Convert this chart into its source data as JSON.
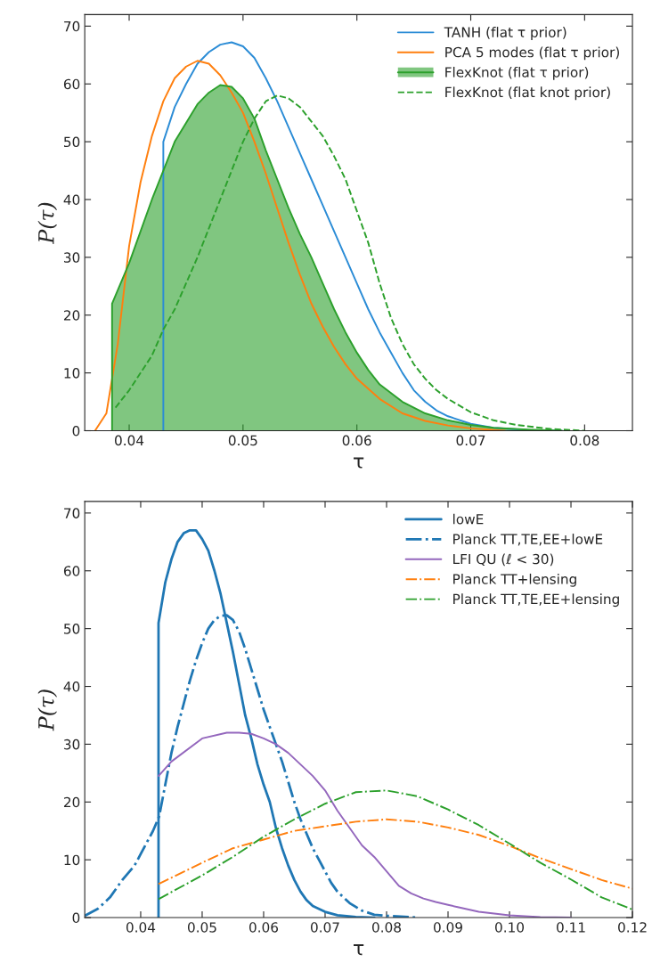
{
  "chart_data": [
    {
      "type": "line",
      "xlabel": "τ",
      "ylabel": "P(τ)",
      "xlim": [
        0.0361,
        0.0842
      ],
      "ylim": [
        0,
        72
      ],
      "xticks": [
        0.04,
        0.05,
        0.06,
        0.07,
        0.08
      ],
      "yticks": [
        0,
        10,
        20,
        30,
        40,
        50,
        60,
        70
      ],
      "grid": false,
      "legend": "top right",
      "series": [
        {
          "name": "TANH (flat τ prior)",
          "color": "#2b8cd6",
          "line_style": "solid",
          "x": [
            0.043,
            0.043,
            0.044,
            0.045,
            0.046,
            0.047,
            0.048,
            0.049,
            0.05,
            0.051,
            0.052,
            0.053,
            0.054,
            0.055,
            0.056,
            0.057,
            0.058,
            0.059,
            0.06,
            0.061,
            0.062,
            0.063,
            0.064,
            0.065,
            0.066,
            0.067,
            0.068,
            0.07,
            0.072,
            0.075,
            0.078
          ],
          "values": [
            0,
            50,
            56,
            60,
            63.5,
            65.5,
            66.8,
            67.2,
            66.5,
            64.5,
            61,
            57,
            52.5,
            48,
            43.5,
            39,
            34.5,
            30,
            25.5,
            21,
            17,
            13.5,
            10,
            7,
            5,
            3.5,
            2.5,
            1.2,
            0.5,
            0.1,
            0
          ]
        },
        {
          "name": "PCA 5 modes (flat τ prior)",
          "color": "#ff7f0e",
          "line_style": "solid",
          "x": [
            0.037,
            0.038,
            0.039,
            0.04,
            0.041,
            0.042,
            0.043,
            0.044,
            0.045,
            0.046,
            0.047,
            0.048,
            0.049,
            0.05,
            0.051,
            0.052,
            0.053,
            0.054,
            0.055,
            0.056,
            0.057,
            0.058,
            0.059,
            0.06,
            0.062,
            0.064,
            0.066,
            0.068,
            0.07,
            0.073
          ],
          "values": [
            0,
            3,
            15,
            32,
            43,
            51,
            57,
            61,
            63,
            64,
            63.5,
            61.5,
            58.5,
            55,
            50,
            44.5,
            38.5,
            32.5,
            27,
            22,
            18,
            14.5,
            11.5,
            9,
            5.5,
            3,
            1.7,
            0.9,
            0.4,
            0
          ]
        },
        {
          "name": "FlexKnot (flat τ prior)",
          "type": "area",
          "color": "#2ca02c",
          "line_style": "solid",
          "x": [
            0.0385,
            0.0385,
            0.04,
            0.042,
            0.043,
            0.044,
            0.046,
            0.047,
            0.048,
            0.049,
            0.05,
            0.051,
            0.052,
            0.053,
            0.054,
            0.055,
            0.056,
            0.057,
            0.058,
            0.059,
            0.06,
            0.061,
            0.062,
            0.064,
            0.066,
            0.068,
            0.07,
            0.072,
            0.075,
            0.078
          ],
          "values": [
            0,
            22,
            29,
            40,
            45,
            50,
            56.5,
            58.5,
            59.8,
            59.5,
            57.5,
            54,
            48.5,
            43.5,
            38.5,
            34,
            30,
            25.5,
            21,
            17,
            13.5,
            10.5,
            8,
            5,
            3,
            1.8,
            1,
            0.5,
            0.2,
            0
          ]
        },
        {
          "name": "FlexKnot (flat knot prior)",
          "color": "#2ca02c",
          "line_style": "dashed",
          "x": [
            0.0388,
            0.04,
            0.042,
            0.043,
            0.044,
            0.046,
            0.048,
            0.05,
            0.051,
            0.052,
            0.053,
            0.054,
            0.055,
            0.056,
            0.057,
            0.058,
            0.059,
            0.06,
            0.061,
            0.062,
            0.063,
            0.064,
            0.065,
            0.066,
            0.067,
            0.068,
            0.07,
            0.072,
            0.074,
            0.077,
            0.08
          ],
          "values": [
            4,
            7,
            13,
            17.5,
            21,
            30,
            40,
            50,
            54,
            57,
            58,
            57.5,
            56,
            53.5,
            51,
            47.5,
            43.5,
            38,
            32.5,
            25.5,
            19.5,
            15,
            11.5,
            9,
            7,
            5.5,
            3.2,
            1.8,
            1,
            0.3,
            0
          ]
        }
      ]
    },
    {
      "type": "line",
      "xlabel": "τ",
      "ylabel": "P(τ)",
      "xlim": [
        0.0309,
        0.12
      ],
      "ylim": [
        0,
        72
      ],
      "xticks": [
        0.04,
        0.05,
        0.06,
        0.07,
        0.08,
        0.09,
        {
          "value": 0.1,
          "label": "0.10"
        },
        0.11,
        {
          "value": 0.12,
          "label": "0.12"
        }
      ],
      "yticks": [
        0,
        10,
        20,
        30,
        40,
        50,
        60,
        70
      ],
      "grid": false,
      "legend": "top right",
      "series": [
        {
          "name": "lowE",
          "color": "#1f77b4",
          "line_style": "solid",
          "x": [
            0.0429,
            0.0429,
            0.044,
            0.045,
            0.046,
            0.047,
            0.048,
            0.049,
            0.05,
            0.051,
            0.052,
            0.053,
            0.054,
            0.055,
            0.056,
            0.057,
            0.058,
            0.059,
            0.06,
            0.061,
            0.062,
            0.063,
            0.064,
            0.065,
            0.066,
            0.067,
            0.068,
            0.07,
            0.072,
            0.075,
            0.078
          ],
          "values": [
            0,
            51,
            58,
            62,
            65,
            66.5,
            67,
            67,
            65.5,
            63.5,
            60,
            56,
            51,
            46,
            40.5,
            35,
            31,
            26.5,
            23,
            20,
            15.5,
            12,
            9,
            6.5,
            4.5,
            3,
            2,
            1,
            0.4,
            0.1,
            0
          ]
        },
        {
          "name": "Planck TT,TE,EE+lowE",
          "color": "#1f77b4",
          "line_style": "dashdot",
          "x": [
            0.0309,
            0.033,
            0.035,
            0.037,
            0.039,
            0.04,
            0.041,
            0.042,
            0.043,
            0.044,
            0.045,
            0.046,
            0.047,
            0.048,
            0.049,
            0.05,
            0.051,
            0.052,
            0.053,
            0.054,
            0.055,
            0.056,
            0.057,
            0.058,
            0.059,
            0.06,
            0.061,
            0.062,
            0.063,
            0.064,
            0.065,
            0.066,
            0.067,
            0.068,
            0.069,
            0.07,
            0.071,
            0.072,
            0.074,
            0.076,
            0.078,
            0.08,
            0.085
          ],
          "values": [
            0.3,
            1.5,
            3.5,
            6.5,
            9,
            11,
            13,
            15,
            17.5,
            23,
            28.5,
            33,
            37,
            41,
            44.5,
            47.5,
            50,
            51.5,
            52.2,
            52.3,
            51.5,
            49.5,
            46.5,
            43,
            39.5,
            36,
            33,
            30,
            27,
            23.5,
            20,
            17,
            14.5,
            12,
            10,
            8,
            6,
            4.5,
            2.5,
            1.2,
            0.5,
            0.3,
            0
          ]
        },
        {
          "name": "LFI QU (ℓ < 30)",
          "color": "#9467bd",
          "line_style": "solid",
          "x": [
            0.0429,
            0.045,
            0.05,
            0.054,
            0.056,
            0.058,
            0.06,
            0.062,
            0.064,
            0.066,
            0.068,
            0.07,
            0.072,
            0.074,
            0.076,
            0.078,
            0.08,
            0.082,
            0.084,
            0.086,
            0.088,
            0.09,
            0.095,
            0.1,
            0.105,
            0.11
          ],
          "values": [
            24.5,
            27,
            31,
            32,
            32,
            31.8,
            31,
            30,
            28.5,
            26.5,
            24.5,
            22,
            18.5,
            15.5,
            12.5,
            10.5,
            8,
            5.5,
            4.2,
            3.3,
            2.7,
            2.2,
            1,
            0.4,
            0.1,
            0
          ]
        },
        {
          "name": "Planck TT+lensing",
          "color": "#ff7f0e",
          "line_style": "dashdot",
          "x": [
            0.0429,
            0.05,
            0.055,
            0.06,
            0.065,
            0.07,
            0.075,
            0.08,
            0.085,
            0.09,
            0.095,
            0.1,
            0.105,
            0.11,
            0.115,
            0.12
          ],
          "values": [
            5.8,
            9.5,
            12,
            13.5,
            15,
            15.8,
            16.6,
            17,
            16.6,
            15.6,
            14.3,
            12.4,
            10.3,
            8.4,
            6.5,
            5
          ]
        },
        {
          "name": "Planck TT,TE,EE+lensing",
          "color": "#2ca02c",
          "line_style": "dashdot",
          "x": [
            0.0429,
            0.05,
            0.055,
            0.06,
            0.065,
            0.07,
            0.075,
            0.08,
            0.085,
            0.09,
            0.095,
            0.1,
            0.105,
            0.11,
            0.115,
            0.12
          ],
          "values": [
            3.2,
            7.3,
            10.5,
            14,
            17,
            19.7,
            21.7,
            22,
            21,
            18.7,
            16,
            12.8,
            9.5,
            6.6,
            3.5,
            1.4
          ]
        }
      ]
    }
  ]
}
